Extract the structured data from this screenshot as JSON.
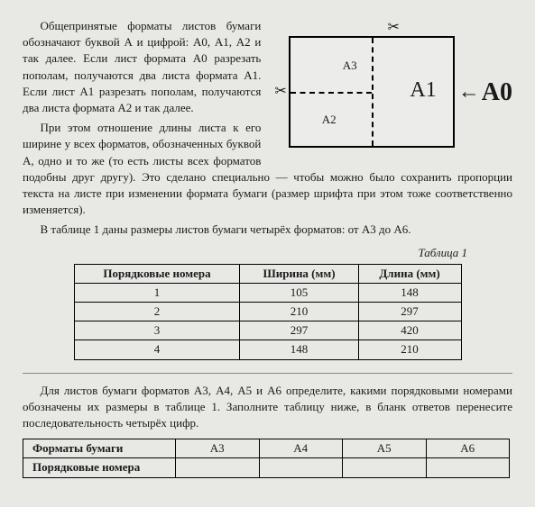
{
  "paragraphs": {
    "p1": "Общепринятые форматы листов бумаги обозначают буквой А и цифрой: А0, А1, А2 и так далее. Если лист формата А0 разрезать пополам, получаются два листа формата А1. Если лист А1 разрезать пополам, получаются два листа формата А2 и так далее.",
    "p2": "При этом отношение длины листа к его ширине у всех форматов, обозначенных буквой А, одно и то же (то есть листы всех форматов подобны друг другу). Это сделано специально — чтобы можно было сохранить пропорции текста на листе при изменении формата бумаги (размер шрифта при этом тоже соответственно изменяется).",
    "p3": "В таблице 1 даны размеры листов бумаги четырёх форматов: от А3 до А6."
  },
  "diagram": {
    "a3": "А3",
    "a2": "А2",
    "a1": "А1",
    "a0": "А0",
    "scissor": "✂",
    "arrow": "←"
  },
  "table1": {
    "caption": "Таблица 1",
    "headers": {
      "num": "Порядковые номера",
      "width": "Ширина (мм)",
      "length": "Длина (мм)"
    },
    "rows": [
      {
        "n": "1",
        "w": "105",
        "l": "148"
      },
      {
        "n": "2",
        "w": "210",
        "l": "297"
      },
      {
        "n": "3",
        "w": "297",
        "l": "420"
      },
      {
        "n": "4",
        "w": "148",
        "l": "210"
      }
    ]
  },
  "task": {
    "text": "Для листов бумаги форматов А3, А4, А5 и А6 определите, какими порядковыми номерами обозначены их размеры в таблице 1. Заполните таблицу ниже, в бланк ответов перенесите последовательность четырёх цифр."
  },
  "table2": {
    "row1label": "Форматы бумаги",
    "row2label": "Порядковые номера",
    "cols": [
      "А3",
      "А4",
      "А5",
      "А6"
    ]
  },
  "colors": {
    "bg": "#e8e8e4",
    "text": "#1a1a1a",
    "border": "#000000"
  }
}
